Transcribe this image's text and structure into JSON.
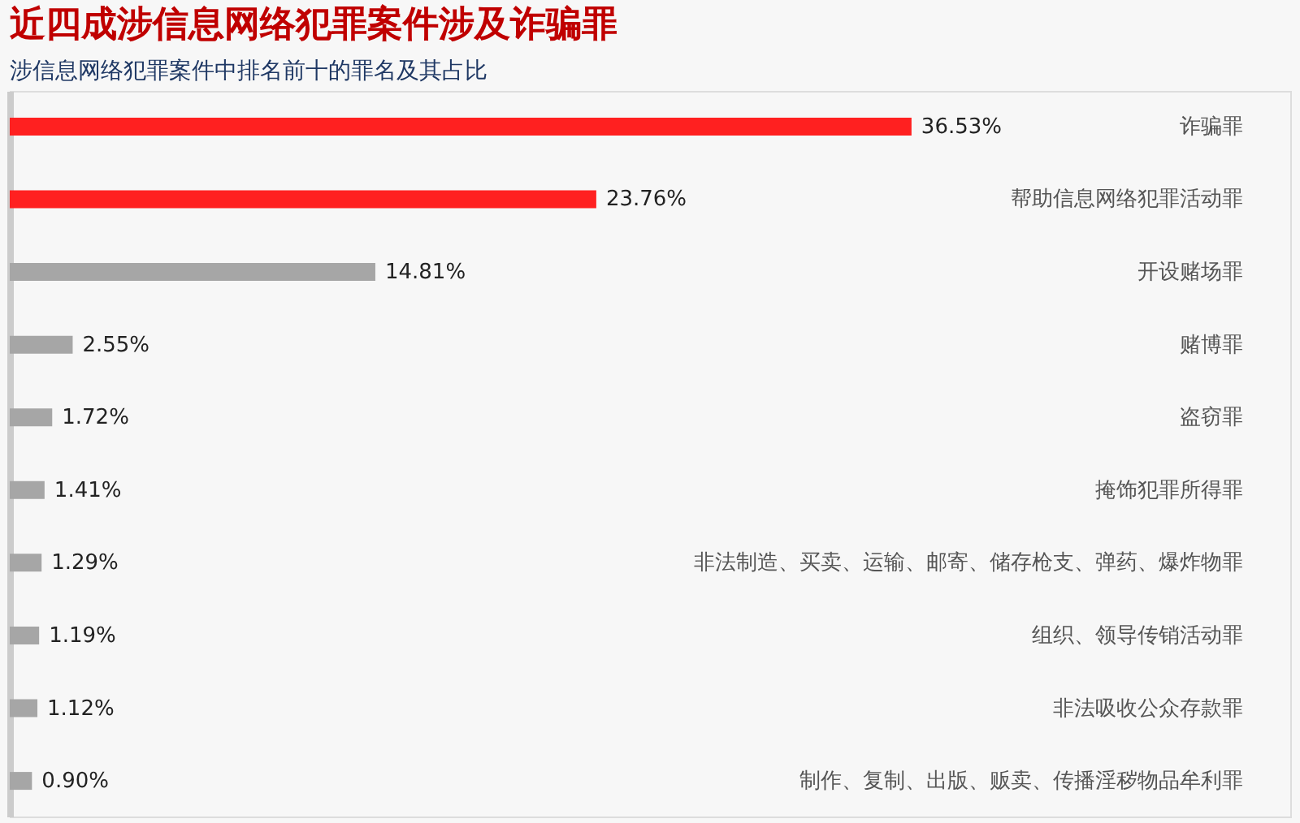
{
  "chart_data": {
    "type": "bar",
    "orientation": "horizontal",
    "title": "近四成涉信息网络犯罪案件涉及诈骗罪",
    "subtitle": "涉信息网络犯罪案件中排名前十的罪名及其占比",
    "categories": [
      "诈骗罪",
      "帮助信息网络犯罪活动罪",
      "开设赌场罪",
      "赌博罪",
      "盗窃罪",
      "掩饰犯罪所得罪",
      "非法制造、买卖、运输、邮寄、储存枪支、弹药、爆炸物罪",
      "组织、领导传销活动罪",
      "非法吸收公众存款罪",
      "制作、复制、出版、贩卖、传播淫秽物品牟利罪"
    ],
    "values": [
      36.53,
      23.76,
      14.81,
      2.55,
      1.72,
      1.41,
      1.29,
      1.19,
      1.12,
      0.9
    ],
    "value_labels": [
      "36.53%",
      "23.76%",
      "14.81%",
      "2.55%",
      "1.72%",
      "1.41%",
      "1.29%",
      "1.19%",
      "1.12%",
      "0.90%"
    ],
    "colors": [
      "#ff2020",
      "#ff2020",
      "#a6a6a6",
      "#a6a6a6",
      "#a6a6a6",
      "#a6a6a6",
      "#a6a6a6",
      "#a6a6a6",
      "#a6a6a6",
      "#a6a6a6"
    ],
    "grid": false
  }
}
